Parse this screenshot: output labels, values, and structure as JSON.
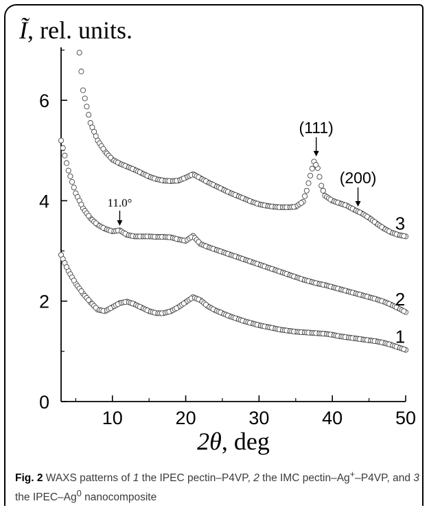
{
  "chart_data": {
    "type": "scatter",
    "ylabel_symbol": "Ĩ",
    "ylabel_rest": ", rel. units.",
    "xlabel_symbol": "2θ",
    "xlabel_rest": ", deg",
    "xlim": [
      3,
      50
    ],
    "ylim": [
      0,
      7
    ],
    "xticks": [
      "10",
      "20",
      "30",
      "40",
      "50"
    ],
    "yticks": [
      "0",
      "2",
      "4",
      "6"
    ],
    "marker": "open-circle",
    "series": [
      {
        "name": "1",
        "x": [
          3,
          4,
          5,
          6,
          7,
          8,
          9,
          10,
          11,
          12,
          13,
          14,
          15,
          16,
          17,
          18,
          19,
          20,
          21,
          22,
          23,
          24,
          25,
          26,
          27,
          28,
          29,
          30,
          31,
          32,
          33,
          34,
          35,
          36,
          37,
          38,
          39,
          40,
          41,
          42,
          43,
          44,
          45,
          46,
          47,
          48,
          49,
          50
        ],
        "y": [
          2.92,
          2.6,
          2.35,
          2.15,
          1.98,
          1.83,
          1.8,
          1.88,
          1.96,
          1.99,
          1.94,
          1.87,
          1.8,
          1.76,
          1.76,
          1.8,
          1.88,
          1.98,
          2.08,
          2.02,
          1.9,
          1.82,
          1.76,
          1.7,
          1.65,
          1.6,
          1.56,
          1.52,
          1.49,
          1.46,
          1.43,
          1.41,
          1.39,
          1.38,
          1.37,
          1.36,
          1.35,
          1.33,
          1.3,
          1.28,
          1.26,
          1.24,
          1.22,
          1.2,
          1.17,
          1.13,
          1.08,
          1.03
        ]
      },
      {
        "name": "2",
        "x": [
          3,
          4,
          5,
          6,
          7,
          8,
          9,
          10,
          11,
          12,
          13,
          14,
          15,
          16,
          17,
          18,
          19,
          20,
          21,
          22,
          23,
          24,
          25,
          26,
          27,
          28,
          29,
          30,
          31,
          32,
          33,
          34,
          35,
          36,
          37,
          38,
          39,
          40,
          41,
          42,
          43,
          44,
          45,
          46,
          47,
          48,
          49,
          50
        ],
        "y": [
          5.2,
          4.6,
          4.15,
          3.85,
          3.65,
          3.52,
          3.44,
          3.39,
          3.41,
          3.32,
          3.29,
          3.29,
          3.29,
          3.28,
          3.28,
          3.27,
          3.23,
          3.2,
          3.3,
          3.14,
          3.08,
          3.03,
          2.98,
          2.93,
          2.88,
          2.83,
          2.78,
          2.73,
          2.68,
          2.63,
          2.58,
          2.53,
          2.48,
          2.43,
          2.39,
          2.35,
          2.32,
          2.28,
          2.24,
          2.2,
          2.16,
          2.12,
          2.08,
          2.04,
          1.99,
          1.93,
          1.86,
          1.78
        ]
      },
      {
        "name": "3",
        "x": [
          5.5,
          6,
          7,
          8,
          9,
          10,
          11,
          12,
          13,
          14,
          15,
          16,
          17,
          18,
          19,
          20,
          21,
          22,
          23,
          24,
          25,
          26,
          27,
          28,
          29,
          30,
          31,
          32,
          33,
          34,
          35,
          36,
          36.5,
          37,
          37.5,
          38,
          38.5,
          39,
          40,
          41,
          42,
          43,
          44,
          45,
          46,
          47,
          48,
          49,
          50
        ],
        "y": [
          6.95,
          6.2,
          5.55,
          5.2,
          4.98,
          4.82,
          4.74,
          4.68,
          4.62,
          4.55,
          4.48,
          4.43,
          4.4,
          4.39,
          4.4,
          4.46,
          4.53,
          4.45,
          4.37,
          4.3,
          4.23,
          4.16,
          4.1,
          4.04,
          3.98,
          3.93,
          3.9,
          3.88,
          3.87,
          3.87,
          3.88,
          3.98,
          4.2,
          4.5,
          4.78,
          4.65,
          4.3,
          4.1,
          4.0,
          3.95,
          3.9,
          3.82,
          3.75,
          3.66,
          3.55,
          3.45,
          3.37,
          3.32,
          3.29
        ]
      }
    ],
    "annotations": [
      {
        "text": "11.0°",
        "x": 11,
        "arrow_to_y": 3.42
      },
      {
        "text": "(111)",
        "x": 37.8,
        "arrow_to_y": 4.8
      },
      {
        "text": "(200)",
        "x": 43.5,
        "arrow_to_y": 3.8
      }
    ]
  },
  "caption": {
    "label": "Fig. 2",
    "t1": " WAXS patterns of ",
    "n1": "1",
    "t2": " the IPEC pectin–P4VP, ",
    "n2": "2",
    "t3": " the IMC pectin–Ag",
    "sup1": "+",
    "t4": "–P4VP, and ",
    "n3": "3",
    "t5": " the IPEC–Ag",
    "sup2": "0",
    "t6": " nanocomposite"
  }
}
